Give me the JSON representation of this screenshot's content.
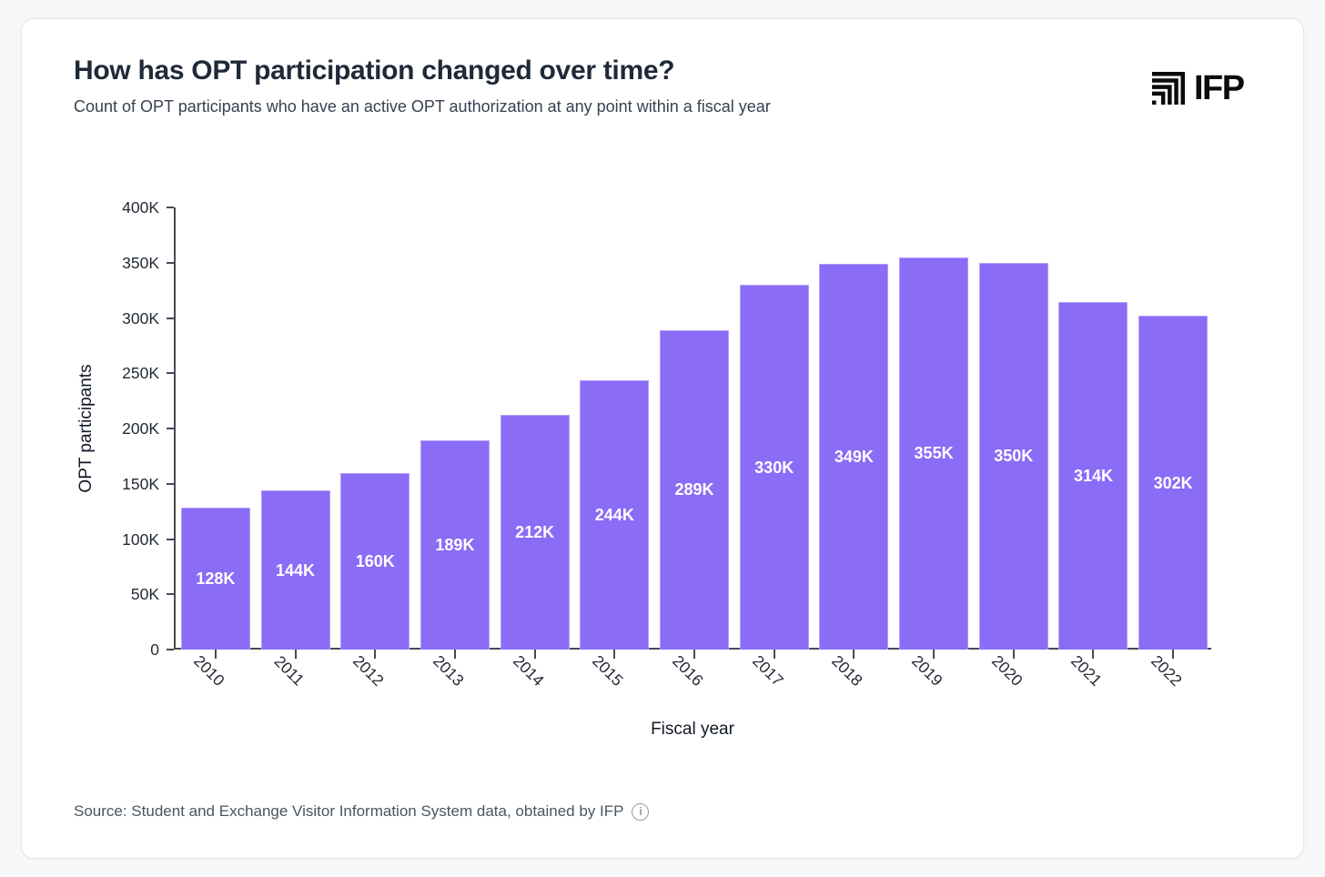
{
  "header": {
    "logo_text": "IFP"
  },
  "footer": {
    "source_text": "Source: Student and Exchange Visitor Information System data, obtained by IFP",
    "info_icon_glyph": "i"
  },
  "chart_data": {
    "type": "bar",
    "title": "How has OPT participation changed over time?",
    "subtitle": "Count of OPT participants who have an active OPT authorization at any point within a fiscal year",
    "xlabel": "Fiscal year",
    "ylabel": "OPT participants",
    "categories": [
      "2010",
      "2011",
      "2012",
      "2013",
      "2014",
      "2015",
      "2016",
      "2017",
      "2018",
      "2019",
      "2020",
      "2021",
      "2022"
    ],
    "values": [
      128000,
      144000,
      160000,
      189000,
      212000,
      244000,
      289000,
      330000,
      349000,
      355000,
      350000,
      314000,
      302000
    ],
    "bar_labels": [
      "128K",
      "144K",
      "160K",
      "189K",
      "212K",
      "244K",
      "289K",
      "330K",
      "349K",
      "355K",
      "350K",
      "314K",
      "302K"
    ],
    "ylim": [
      0,
      400000
    ],
    "yticks": [
      {
        "value": 0,
        "label": "0"
      },
      {
        "value": 50000,
        "label": "50K"
      },
      {
        "value": 100000,
        "label": "100K"
      },
      {
        "value": 150000,
        "label": "150K"
      },
      {
        "value": 200000,
        "label": "200K"
      },
      {
        "value": 250000,
        "label": "250K"
      },
      {
        "value": 300000,
        "label": "300K"
      },
      {
        "value": 350000,
        "label": "350K"
      },
      {
        "value": 400000,
        "label": "400K"
      }
    ],
    "grid": false,
    "legend": "none",
    "x_tick_rotation_deg": 45
  },
  "colors": {
    "page_bg": "#F6F7F9",
    "card_bg": "#FFFFFF",
    "card_border": "#E3E6EB",
    "title": "#1F2937",
    "subtitle": "#374151",
    "axis": "#444B55",
    "tick_label": "#242B35",
    "bar": "#8A6CF6",
    "bar_label": "#FFFFFF",
    "axis_title": "#111827",
    "footer": "#4A5560",
    "logo": "#0B0C0E",
    "info_icon": "#8D99A8"
  }
}
